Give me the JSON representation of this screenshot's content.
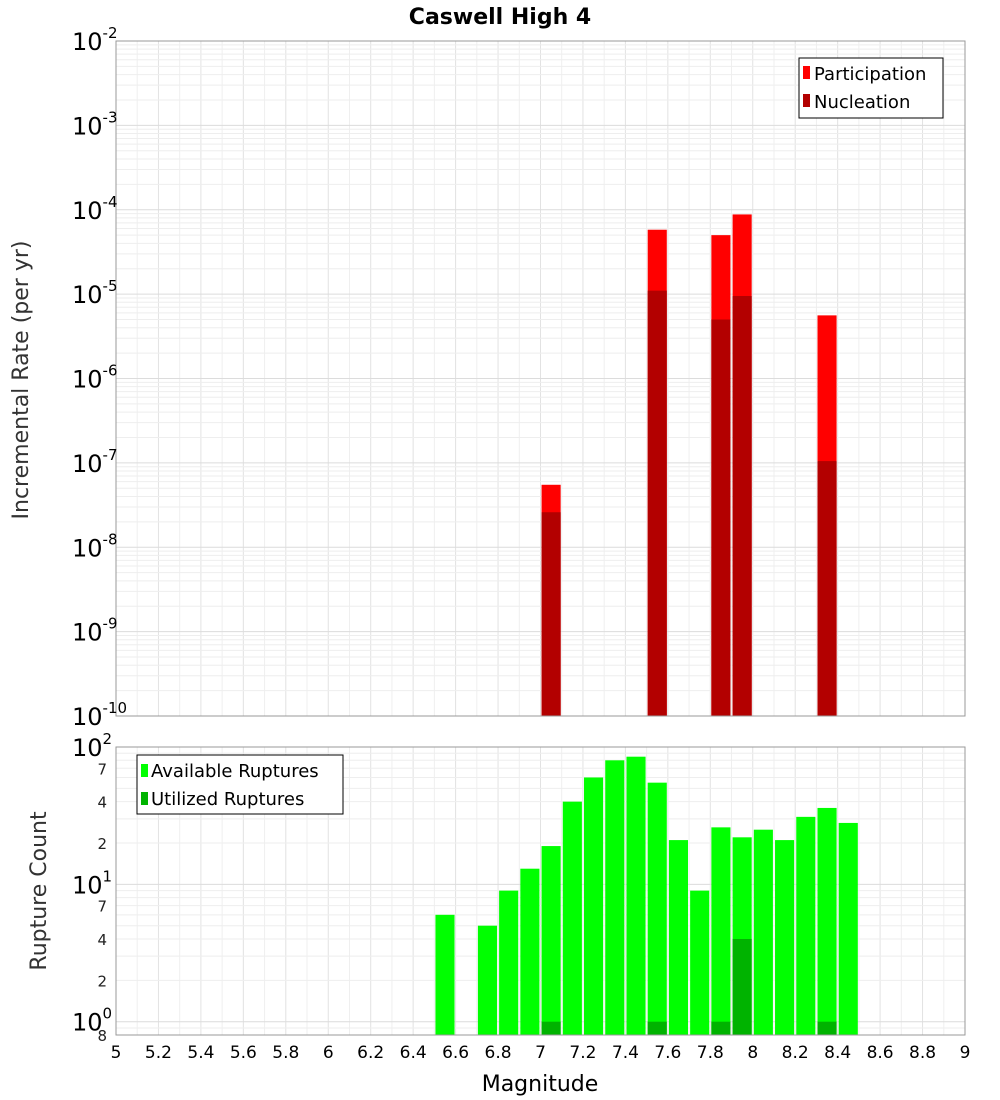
{
  "chart_data": [
    {
      "type": "bar",
      "scale": "log",
      "title": "Caswell High 4",
      "ylabel": "Incremental Rate (per yr)",
      "xlabel": "",
      "xlim": [
        5,
        9
      ],
      "ylim": [
        1e-10,
        0.01
      ],
      "bar_width": 0.09,
      "y_ticks": [
        {
          "base": "10",
          "exp": "-2"
        },
        {
          "base": "10",
          "exp": "-3"
        },
        {
          "base": "10",
          "exp": "-4"
        },
        {
          "base": "10",
          "exp": "-5"
        },
        {
          "base": "10",
          "exp": "-6"
        },
        {
          "base": "10",
          "exp": "-7"
        },
        {
          "base": "10",
          "exp": "-8"
        },
        {
          "base": "10",
          "exp": "-9"
        },
        {
          "base": "10",
          "exp": "-10"
        }
      ],
      "legend": [
        "Participation",
        "Nucleation"
      ],
      "series": [
        {
          "name": "Participation",
          "color": "#ff0000",
          "x": [
            7.05,
            7.55,
            7.85,
            7.95,
            8.35
          ],
          "values": [
            5.5e-08,
            5.8e-05,
            5e-05,
            8.8e-05,
            5.6e-06
          ]
        },
        {
          "name": "Nucleation",
          "color": "#b30000",
          "x": [
            7.05,
            7.55,
            7.85,
            7.95,
            8.35
          ],
          "values": [
            2.6e-08,
            1.1e-05,
            5e-06,
            9.5e-06,
            1.05e-07
          ]
        }
      ]
    },
    {
      "type": "bar",
      "scale": "log",
      "title": "",
      "ylabel": "Rupture Count",
      "xlabel": "Magnitude",
      "xlim": [
        5,
        9
      ],
      "ylim": [
        0.8,
        100
      ],
      "bar_width": 0.09,
      "x_ticks": [
        "5",
        "5.2",
        "5.4",
        "5.6",
        "5.8",
        "6",
        "6.2",
        "6.4",
        "6.6",
        "6.8",
        "7",
        "7.2",
        "7.4",
        "7.6",
        "7.8",
        "8",
        "8.2",
        "8.4",
        "8.6",
        "8.8",
        "9"
      ],
      "y_major_ticks": [
        {
          "base": "10",
          "exp": "0"
        },
        {
          "base": "10",
          "exp": "1"
        },
        {
          "base": "10",
          "exp": "2"
        }
      ],
      "y_minor_ticks": [
        {
          "label": "8",
          "value": 0.8
        },
        {
          "label": "2",
          "value": 2
        },
        {
          "label": "4",
          "value": 4
        },
        {
          "label": "7",
          "value": 7
        },
        {
          "label": "2",
          "value": 20
        },
        {
          "label": "4",
          "value": 40
        },
        {
          "label": "7",
          "value": 70
        }
      ],
      "legend": [
        "Available Ruptures",
        "Utilized Ruptures"
      ],
      "series": [
        {
          "name": "Available Ruptures",
          "color": "#00ff00",
          "x": [
            6.55,
            6.75,
            6.85,
            6.95,
            7.05,
            7.15,
            7.25,
            7.35,
            7.45,
            7.55,
            7.65,
            7.75,
            7.85,
            7.95,
            8.05,
            8.15,
            8.25,
            8.35,
            8.45
          ],
          "values": [
            6,
            5,
            9,
            13,
            19,
            40,
            60,
            80,
            85,
            55,
            21,
            9,
            26,
            22,
            25,
            21,
            31,
            36,
            28
          ]
        },
        {
          "name": "Utilized Ruptures",
          "color": "#00b300",
          "x": [
            7.05,
            7.55,
            7.85,
            7.95,
            8.35
          ],
          "values": [
            1,
            1,
            1,
            4,
            1
          ]
        }
      ]
    }
  ]
}
